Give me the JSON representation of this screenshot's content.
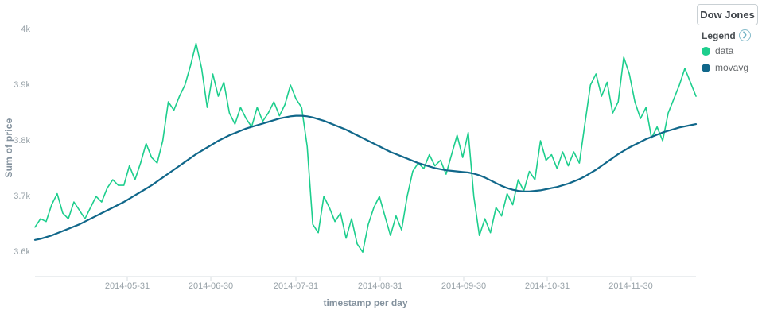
{
  "legend": {
    "title": "Dow Jones",
    "label": "Legend",
    "toggle_icon": "chevron-right-circle",
    "items": [
      {
        "label": "data",
        "color": "#1dce8d"
      },
      {
        "label": "movavg",
        "color": "#10678a"
      }
    ]
  },
  "chart_data": {
    "type": "line",
    "title": "Dow Jones",
    "xlabel": "timestamp per day",
    "ylabel": "Sum of price",
    "legend_position": "right",
    "grid": false,
    "x_start": "2014-04-28",
    "x_end": "2014-12-22",
    "x_sampling": "approximately every 2 days",
    "ylim": [
      3.556,
      4.01
    ],
    "y_ticks": [
      {
        "label": "4k",
        "value": 4.0
      },
      {
        "label": "3.9k",
        "value": 3.9
      },
      {
        "label": "3.8k",
        "value": 3.8
      },
      {
        "label": "3.7k",
        "value": 3.7
      },
      {
        "label": "3.6k",
        "value": 3.6
      }
    ],
    "x_ticks": [
      {
        "label": "2014-05-31",
        "pos": 0.1396
      },
      {
        "label": "2014-06-30",
        "pos": 0.266
      },
      {
        "label": "2014-07-31",
        "pos": 0.3947
      },
      {
        "label": "2014-08-31",
        "pos": 0.5223
      },
      {
        "label": "2014-09-30",
        "pos": 0.6486
      },
      {
        "label": "2014-10-31",
        "pos": 0.775
      },
      {
        "label": "2014-11-30",
        "pos": 0.9013
      }
    ],
    "series": [
      {
        "name": "data",
        "color": "#1dce8d",
        "width": 1.6,
        "values": [
          3.645,
          3.66,
          3.655,
          3.685,
          3.705,
          3.67,
          3.66,
          3.69,
          3.675,
          3.66,
          3.68,
          3.7,
          3.69,
          3.715,
          3.73,
          3.72,
          3.72,
          3.755,
          3.73,
          3.76,
          3.795,
          3.77,
          3.76,
          3.8,
          3.87,
          3.855,
          3.88,
          3.9,
          3.935,
          3.975,
          3.93,
          3.86,
          3.92,
          3.88,
          3.905,
          3.85,
          3.83,
          3.86,
          3.84,
          3.825,
          3.86,
          3.835,
          3.85,
          3.87,
          3.845,
          3.865,
          3.9,
          3.875,
          3.86,
          3.79,
          3.65,
          3.635,
          3.7,
          3.68,
          3.655,
          3.67,
          3.625,
          3.66,
          3.615,
          3.6,
          3.65,
          3.68,
          3.7,
          3.665,
          3.63,
          3.665,
          3.64,
          3.7,
          3.745,
          3.76,
          3.75,
          3.775,
          3.755,
          3.765,
          3.74,
          3.775,
          3.81,
          3.77,
          3.815,
          3.7,
          3.63,
          3.66,
          3.635,
          3.68,
          3.665,
          3.705,
          3.685,
          3.73,
          3.71,
          3.745,
          3.73,
          3.8,
          3.765,
          3.775,
          3.75,
          3.78,
          3.755,
          3.78,
          3.76,
          3.83,
          3.9,
          3.92,
          3.88,
          3.905,
          3.85,
          3.87,
          3.95,
          3.92,
          3.87,
          3.84,
          3.86,
          3.805,
          3.825,
          3.8,
          3.85,
          3.875,
          3.9,
          3.93,
          3.905,
          3.88
        ]
      },
      {
        "name": "movavg",
        "color": "#10678a",
        "width": 2.2,
        "values": [
          3.622,
          3.624,
          3.627,
          3.63,
          3.634,
          3.638,
          3.642,
          3.646,
          3.65,
          3.655,
          3.66,
          3.665,
          3.67,
          3.675,
          3.68,
          3.685,
          3.69,
          3.696,
          3.702,
          3.708,
          3.714,
          3.72,
          3.727,
          3.734,
          3.741,
          3.748,
          3.755,
          3.762,
          3.769,
          3.776,
          3.782,
          3.788,
          3.794,
          3.8,
          3.805,
          3.81,
          3.814,
          3.818,
          3.822,
          3.825,
          3.828,
          3.831,
          3.834,
          3.837,
          3.84,
          3.842,
          3.844,
          3.845,
          3.845,
          3.844,
          3.842,
          3.839,
          3.836,
          3.832,
          3.828,
          3.824,
          3.82,
          3.815,
          3.81,
          3.805,
          3.8,
          3.795,
          3.79,
          3.785,
          3.78,
          3.776,
          3.772,
          3.768,
          3.764,
          3.76,
          3.757,
          3.754,
          3.751,
          3.749,
          3.747,
          3.746,
          3.745,
          3.744,
          3.743,
          3.741,
          3.738,
          3.734,
          3.729,
          3.724,
          3.719,
          3.715,
          3.712,
          3.71,
          3.709,
          3.709,
          3.71,
          3.711,
          3.713,
          3.715,
          3.717,
          3.72,
          3.723,
          3.727,
          3.731,
          3.736,
          3.742,
          3.748,
          3.755,
          3.762,
          3.769,
          3.776,
          3.782,
          3.788,
          3.793,
          3.798,
          3.803,
          3.807,
          3.811,
          3.815,
          3.818,
          3.821,
          3.824,
          3.826,
          3.828,
          3.83
        ]
      }
    ]
  }
}
